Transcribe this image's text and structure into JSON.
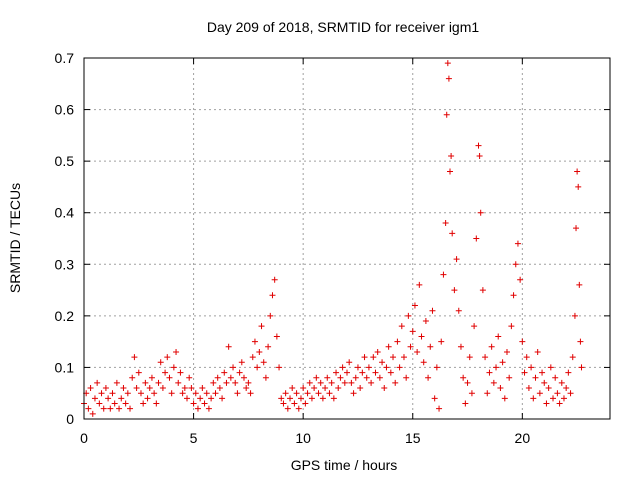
{
  "chart_data": {
    "type": "scatter",
    "title": "Day 209 of 2018, SRMTID for receiver igm1",
    "xlabel": "GPS time / hours",
    "ylabel": "SRMTID / TECUs",
    "xlim": [
      0,
      24
    ],
    "ylim": [
      0,
      0.7
    ],
    "xticks": [
      0,
      5,
      10,
      15,
      20
    ],
    "yticks": [
      0,
      0.1,
      0.2,
      0.3,
      0.4,
      0.5,
      0.6,
      0.7
    ],
    "xtick_labels": [
      "0",
      "5",
      "10",
      "15",
      "20"
    ],
    "ytick_labels": [
      "0",
      "0.1",
      "0.2",
      "0.3",
      "0.4",
      "0.5",
      "0.6",
      "0.7"
    ],
    "grid": true,
    "marker": "+",
    "color": "#e00000",
    "series": [
      {
        "name": "igm1",
        "points": [
          [
            0.0,
            0.03
          ],
          [
            0.1,
            0.05
          ],
          [
            0.2,
            0.02
          ],
          [
            0.3,
            0.06
          ],
          [
            0.4,
            0.01
          ],
          [
            0.5,
            0.04
          ],
          [
            0.6,
            0.07
          ],
          [
            0.7,
            0.03
          ],
          [
            0.8,
            0.05
          ],
          [
            0.9,
            0.02
          ],
          [
            1.0,
            0.06
          ],
          [
            1.1,
            0.04
          ],
          [
            1.2,
            0.02
          ],
          [
            1.3,
            0.05
          ],
          [
            1.4,
            0.03
          ],
          [
            1.5,
            0.07
          ],
          [
            1.6,
            0.02
          ],
          [
            1.7,
            0.04
          ],
          [
            1.8,
            0.06
          ],
          [
            1.9,
            0.03
          ],
          [
            2.0,
            0.05
          ],
          [
            2.1,
            0.02
          ],
          [
            2.2,
            0.08
          ],
          [
            2.3,
            0.12
          ],
          [
            2.4,
            0.06
          ],
          [
            2.5,
            0.09
          ],
          [
            2.6,
            0.05
          ],
          [
            2.7,
            0.03
          ],
          [
            2.8,
            0.07
          ],
          [
            2.9,
            0.04
          ],
          [
            3.0,
            0.06
          ],
          [
            3.1,
            0.08
          ],
          [
            3.2,
            0.05
          ],
          [
            3.3,
            0.03
          ],
          [
            3.4,
            0.07
          ],
          [
            3.5,
            0.11
          ],
          [
            3.6,
            0.06
          ],
          [
            3.7,
            0.09
          ],
          [
            3.8,
            0.12
          ],
          [
            3.9,
            0.08
          ],
          [
            4.0,
            0.05
          ],
          [
            4.1,
            0.1
          ],
          [
            4.2,
            0.13
          ],
          [
            4.3,
            0.07
          ],
          [
            4.4,
            0.09
          ],
          [
            4.5,
            0.05
          ],
          [
            4.6,
            0.06
          ],
          [
            4.7,
            0.04
          ],
          [
            4.8,
            0.08
          ],
          [
            4.9,
            0.06
          ],
          [
            5.0,
            0.03
          ],
          [
            5.1,
            0.05
          ],
          [
            5.2,
            0.02
          ],
          [
            5.3,
            0.04
          ],
          [
            5.4,
            0.06
          ],
          [
            5.5,
            0.03
          ],
          [
            5.6,
            0.05
          ],
          [
            5.7,
            0.02
          ],
          [
            5.8,
            0.04
          ],
          [
            5.9,
            0.07
          ],
          [
            6.0,
            0.05
          ],
          [
            6.1,
            0.08
          ],
          [
            6.2,
            0.06
          ],
          [
            6.3,
            0.04
          ],
          [
            6.4,
            0.09
          ],
          [
            6.5,
            0.07
          ],
          [
            6.6,
            0.14
          ],
          [
            6.7,
            0.08
          ],
          [
            6.8,
            0.1
          ],
          [
            6.9,
            0.07
          ],
          [
            7.0,
            0.05
          ],
          [
            7.1,
            0.09
          ],
          [
            7.2,
            0.11
          ],
          [
            7.3,
            0.08
          ],
          [
            7.4,
            0.06
          ],
          [
            7.5,
            0.07
          ],
          [
            7.6,
            0.05
          ],
          [
            7.7,
            0.12
          ],
          [
            7.8,
            0.15
          ],
          [
            7.9,
            0.1
          ],
          [
            8.0,
            0.13
          ],
          [
            8.1,
            0.18
          ],
          [
            8.2,
            0.11
          ],
          [
            8.3,
            0.08
          ],
          [
            8.4,
            0.14
          ],
          [
            8.5,
            0.2
          ],
          [
            8.6,
            0.24
          ],
          [
            8.7,
            0.27
          ],
          [
            8.8,
            0.16
          ],
          [
            8.9,
            0.1
          ],
          [
            9.0,
            0.04
          ],
          [
            9.1,
            0.03
          ],
          [
            9.2,
            0.05
          ],
          [
            9.3,
            0.02
          ],
          [
            9.4,
            0.04
          ],
          [
            9.5,
            0.06
          ],
          [
            9.6,
            0.03
          ],
          [
            9.7,
            0.05
          ],
          [
            9.8,
            0.02
          ],
          [
            9.9,
            0.04
          ],
          [
            10.0,
            0.06
          ],
          [
            10.1,
            0.03
          ],
          [
            10.2,
            0.05
          ],
          [
            10.3,
            0.07
          ],
          [
            10.4,
            0.04
          ],
          [
            10.5,
            0.06
          ],
          [
            10.6,
            0.08
          ],
          [
            10.7,
            0.05
          ],
          [
            10.8,
            0.07
          ],
          [
            10.9,
            0.04
          ],
          [
            11.0,
            0.06
          ],
          [
            11.1,
            0.08
          ],
          [
            11.2,
            0.05
          ],
          [
            11.3,
            0.07
          ],
          [
            11.4,
            0.04
          ],
          [
            11.5,
            0.09
          ],
          [
            11.6,
            0.06
          ],
          [
            11.7,
            0.08
          ],
          [
            11.8,
            0.1
          ],
          [
            11.9,
            0.07
          ],
          [
            12.0,
            0.09
          ],
          [
            12.1,
            0.11
          ],
          [
            12.2,
            0.07
          ],
          [
            12.3,
            0.05
          ],
          [
            12.4,
            0.08
          ],
          [
            12.5,
            0.1
          ],
          [
            12.6,
            0.06
          ],
          [
            12.7,
            0.09
          ],
          [
            12.8,
            0.12
          ],
          [
            12.9,
            0.08
          ],
          [
            13.0,
            0.1
          ],
          [
            13.1,
            0.07
          ],
          [
            13.2,
            0.12
          ],
          [
            13.3,
            0.09
          ],
          [
            13.4,
            0.13
          ],
          [
            13.5,
            0.08
          ],
          [
            13.6,
            0.11
          ],
          [
            13.7,
            0.06
          ],
          [
            13.8,
            0.1
          ],
          [
            13.9,
            0.14
          ],
          [
            14.0,
            0.09
          ],
          [
            14.1,
            0.12
          ],
          [
            14.2,
            0.07
          ],
          [
            14.3,
            0.15
          ],
          [
            14.4,
            0.1
          ],
          [
            14.5,
            0.18
          ],
          [
            14.6,
            0.12
          ],
          [
            14.7,
            0.08
          ],
          [
            14.8,
            0.2
          ],
          [
            14.9,
            0.14
          ],
          [
            15.0,
            0.17
          ],
          [
            15.1,
            0.22
          ],
          [
            15.2,
            0.13
          ],
          [
            15.3,
            0.26
          ],
          [
            15.4,
            0.16
          ],
          [
            15.5,
            0.11
          ],
          [
            15.6,
            0.19
          ],
          [
            15.7,
            0.08
          ],
          [
            15.8,
            0.14
          ],
          [
            15.9,
            0.21
          ],
          [
            16.0,
            0.04
          ],
          [
            16.1,
            0.1
          ],
          [
            16.2,
            0.02
          ],
          [
            16.3,
            0.15
          ],
          [
            16.4,
            0.28
          ],
          [
            16.5,
            0.38
          ],
          [
            16.55,
            0.59
          ],
          [
            16.6,
            0.69
          ],
          [
            16.65,
            0.66
          ],
          [
            16.7,
            0.48
          ],
          [
            16.75,
            0.51
          ],
          [
            16.8,
            0.36
          ],
          [
            16.9,
            0.25
          ],
          [
            17.0,
            0.31
          ],
          [
            17.1,
            0.21
          ],
          [
            17.2,
            0.14
          ],
          [
            17.3,
            0.08
          ],
          [
            17.4,
            0.03
          ],
          [
            17.5,
            0.07
          ],
          [
            17.6,
            0.12
          ],
          [
            17.7,
            0.05
          ],
          [
            17.8,
            0.18
          ],
          [
            17.9,
            0.35
          ],
          [
            18.0,
            0.53
          ],
          [
            18.05,
            0.51
          ],
          [
            18.1,
            0.4
          ],
          [
            18.2,
            0.25
          ],
          [
            18.3,
            0.12
          ],
          [
            18.4,
            0.05
          ],
          [
            18.5,
            0.09
          ],
          [
            18.6,
            0.14
          ],
          [
            18.7,
            0.07
          ],
          [
            18.8,
            0.1
          ],
          [
            18.9,
            0.16
          ],
          [
            19.0,
            0.06
          ],
          [
            19.1,
            0.11
          ],
          [
            19.2,
            0.04
          ],
          [
            19.3,
            0.13
          ],
          [
            19.4,
            0.08
          ],
          [
            19.5,
            0.18
          ],
          [
            19.6,
            0.24
          ],
          [
            19.7,
            0.3
          ],
          [
            19.8,
            0.34
          ],
          [
            19.9,
            0.27
          ],
          [
            20.0,
            0.15
          ],
          [
            20.1,
            0.09
          ],
          [
            20.2,
            0.12
          ],
          [
            20.3,
            0.06
          ],
          [
            20.4,
            0.1
          ],
          [
            20.5,
            0.04
          ],
          [
            20.6,
            0.08
          ],
          [
            20.7,
            0.13
          ],
          [
            20.8,
            0.05
          ],
          [
            20.9,
            0.09
          ],
          [
            21.0,
            0.07
          ],
          [
            21.1,
            0.03
          ],
          [
            21.2,
            0.06
          ],
          [
            21.3,
            0.1
          ],
          [
            21.4,
            0.04
          ],
          [
            21.5,
            0.08
          ],
          [
            21.6,
            0.05
          ],
          [
            21.7,
            0.03
          ],
          [
            21.8,
            0.07
          ],
          [
            21.9,
            0.04
          ],
          [
            22.0,
            0.06
          ],
          [
            22.1,
            0.09
          ],
          [
            22.2,
            0.05
          ],
          [
            22.3,
            0.12
          ],
          [
            22.4,
            0.2
          ],
          [
            22.45,
            0.37
          ],
          [
            22.5,
            0.48
          ],
          [
            22.55,
            0.45
          ],
          [
            22.6,
            0.26
          ],
          [
            22.65,
            0.15
          ],
          [
            22.7,
            0.1
          ]
        ]
      }
    ]
  }
}
